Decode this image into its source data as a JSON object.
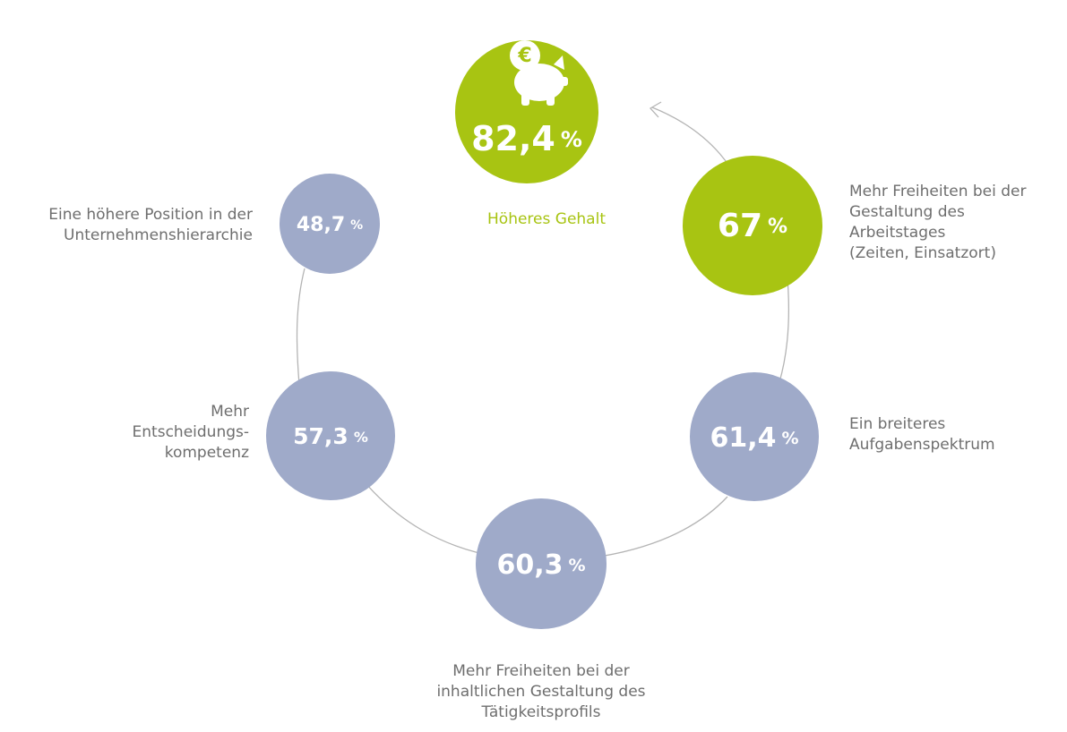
{
  "nodes": [
    {
      "value": "82,4",
      "unit": "%",
      "label": [
        "Höheres Gehalt"
      ]
    },
    {
      "value": "67",
      "unit": "%",
      "label": [
        "Mehr Freiheiten bei der",
        "Gestaltung des",
        "Arbeitstages",
        "(Zeiten, Einsatzort)"
      ]
    },
    {
      "value": "61,4",
      "unit": "%",
      "label": [
        "Ein breiteres",
        "Aufgabenspektrum"
      ]
    },
    {
      "value": "60,3",
      "unit": "%",
      "label": [
        "Mehr Freiheiten bei der",
        "inhaltlichen Gestaltung des",
        "Tätigkeitsprofils"
      ]
    },
    {
      "value": "57,3",
      "unit": "%",
      "label": [
        "Mehr",
        "Entscheidungs-",
        "kompetenz"
      ]
    },
    {
      "value": "48,7",
      "unit": "%",
      "label": [
        "Eine höhere Position in der",
        "Unternehmenshierarchie"
      ]
    }
  ]
}
